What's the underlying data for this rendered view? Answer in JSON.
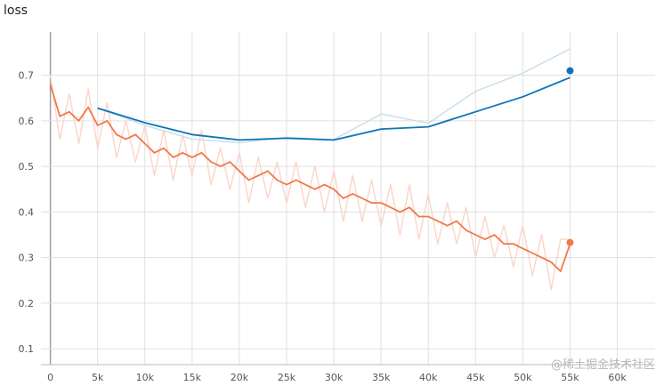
{
  "chart_data": {
    "type": "line",
    "title": "loss",
    "xlabel": "",
    "ylabel": "",
    "xlim": [
      -1000,
      64000
    ],
    "ylim": [
      0.065,
      0.795
    ],
    "x_ticks": [
      0,
      5000,
      10000,
      15000,
      20000,
      25000,
      30000,
      35000,
      40000,
      45000,
      50000,
      55000,
      60000
    ],
    "x_tick_labels": [
      "0",
      "5k",
      "10k",
      "15k",
      "20k",
      "25k",
      "30k",
      "35k",
      "40k",
      "45k",
      "50k",
      "55k",
      "60k"
    ],
    "y_ticks": [
      0.1,
      0.2,
      0.3,
      0.4,
      0.5,
      0.6,
      0.7
    ],
    "y_tick_labels": [
      "0.1",
      "0.2",
      "0.3",
      "0.4",
      "0.5",
      "0.6",
      "0.7"
    ],
    "grid": true,
    "series": [
      {
        "smoothed": true,
        "color": "#f2784b",
        "raw_color": "#fbd5c7",
        "x": [
          0,
          1000,
          2000,
          3000,
          4000,
          5000,
          6000,
          7000,
          8000,
          9000,
          10000,
          11000,
          12000,
          13000,
          14000,
          15000,
          16000,
          17000,
          18000,
          19000,
          20000,
          21000,
          22000,
          23000,
          24000,
          25000,
          26000,
          27000,
          28000,
          29000,
          30000,
          31000,
          32000,
          33000,
          34000,
          35000,
          36000,
          37000,
          38000,
          39000,
          40000,
          41000,
          42000,
          43000,
          44000,
          45000,
          46000,
          47000,
          48000,
          49000,
          50000,
          51000,
          52000,
          53000,
          54000,
          55000
        ],
        "values": [
          0.68,
          0.61,
          0.62,
          0.6,
          0.63,
          0.59,
          0.6,
          0.57,
          0.56,
          0.57,
          0.55,
          0.53,
          0.54,
          0.52,
          0.53,
          0.52,
          0.53,
          0.51,
          0.5,
          0.51,
          0.49,
          0.47,
          0.48,
          0.49,
          0.47,
          0.46,
          0.47,
          0.46,
          0.45,
          0.46,
          0.45,
          0.43,
          0.44,
          0.43,
          0.42,
          0.42,
          0.41,
          0.4,
          0.41,
          0.39,
          0.39,
          0.38,
          0.37,
          0.38,
          0.36,
          0.35,
          0.34,
          0.35,
          0.33,
          0.33,
          0.32,
          0.31,
          0.3,
          0.29,
          0.27,
          0.33
        ],
        "raw_values": [
          0.7,
          0.56,
          0.66,
          0.55,
          0.67,
          0.54,
          0.64,
          0.52,
          0.6,
          0.51,
          0.59,
          0.48,
          0.58,
          0.47,
          0.57,
          0.48,
          0.58,
          0.46,
          0.54,
          0.45,
          0.53,
          0.42,
          0.52,
          0.43,
          0.51,
          0.42,
          0.51,
          0.41,
          0.5,
          0.4,
          0.49,
          0.38,
          0.48,
          0.38,
          0.47,
          0.37,
          0.46,
          0.35,
          0.46,
          0.34,
          0.44,
          0.33,
          0.42,
          0.33,
          0.41,
          0.3,
          0.39,
          0.3,
          0.37,
          0.28,
          0.37,
          0.26,
          0.35,
          0.23,
          0.34,
          0.34
        ]
      },
      {
        "smoothed": true,
        "color": "#0d74b8",
        "raw_color": "#c8dde9",
        "x": [
          5000,
          10000,
          15000,
          20000,
          25000,
          30000,
          35000,
          40000,
          45000,
          50000,
          55000
        ],
        "values": [
          0.628,
          0.596,
          0.57,
          0.558,
          0.562,
          0.558,
          0.582,
          0.587,
          0.62,
          0.653,
          0.695
        ],
        "raw_values": [
          0.628,
          0.59,
          0.56,
          0.552,
          0.564,
          0.559,
          0.615,
          0.595,
          0.665,
          0.705,
          0.758
        ]
      }
    ],
    "end_markers": [
      {
        "x": 55000,
        "y": 0.71,
        "color": "#0d74b8"
      },
      {
        "x": 55000,
        "y": 0.333,
        "color": "#f2784b"
      }
    ]
  },
  "watermark": "@稀土掘金技术社区"
}
